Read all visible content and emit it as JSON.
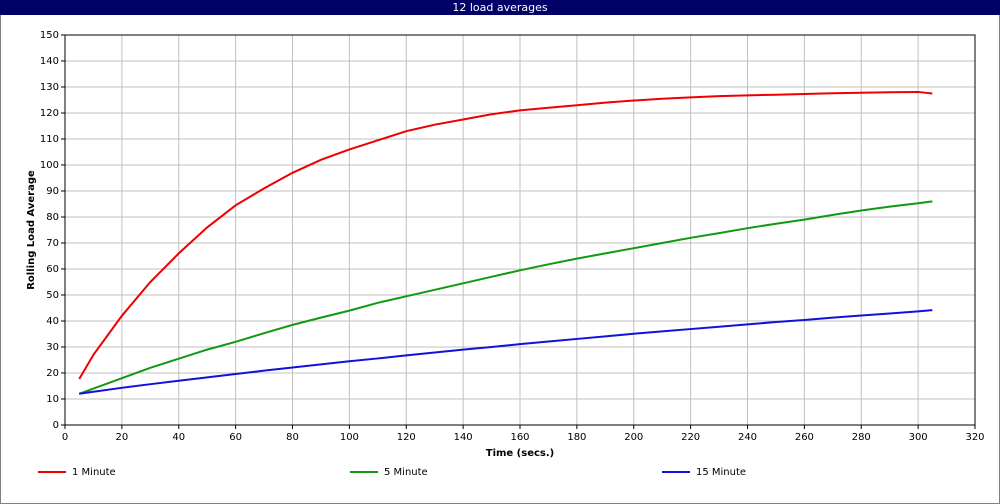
{
  "chart_data": {
    "type": "line",
    "title": "12 load averages",
    "xlabel": "Time (secs.)",
    "ylabel": "Rolling Load Average",
    "x": [
      5,
      10,
      20,
      30,
      40,
      50,
      60,
      70,
      80,
      90,
      100,
      110,
      120,
      130,
      140,
      150,
      160,
      170,
      180,
      190,
      200,
      210,
      220,
      230,
      240,
      250,
      260,
      270,
      280,
      290,
      300,
      305
    ],
    "series": [
      {
        "name": "1 Minute",
        "color": "#ee0000",
        "values": [
          17.7,
          27,
          42,
          55,
          66,
          76,
          84.5,
          91,
          97,
          102,
          106,
          109.5,
          113,
          115.5,
          117.5,
          119.5,
          121,
          122,
          123,
          124,
          124.8,
          125.5,
          126,
          126.5,
          126.8,
          127,
          127.3,
          127.6,
          127.8,
          128,
          128.1,
          127.5
        ]
      },
      {
        "name": "5 Minute",
        "color": "#119911",
        "values": [
          12,
          14,
          18,
          22,
          25.5,
          29,
          32,
          35.3,
          38.5,
          41.3,
          44,
          47,
          49.5,
          52,
          54.5,
          57,
          59.5,
          61.8,
          64,
          66,
          68,
          70,
          72,
          73.8,
          75.7,
          77.4,
          79,
          80.8,
          82.5,
          84,
          85.3,
          86
        ]
      },
      {
        "name": "15 Minute",
        "color": "#1111dd",
        "values": [
          12,
          12.8,
          14.3,
          15.7,
          17,
          18.3,
          19.6,
          20.9,
          22.1,
          23.3,
          24.5,
          25.6,
          26.8,
          27.9,
          29,
          30,
          31.1,
          32.1,
          33.1,
          34.1,
          35.1,
          36,
          36.9,
          37.8,
          38.7,
          39.6,
          40.4,
          41.3,
          42.1,
          42.9,
          43.7,
          44.2
        ]
      }
    ],
    "xlim": [
      0,
      320
    ],
    "ylim": [
      0,
      150
    ],
    "xticks": [
      0,
      20,
      40,
      60,
      80,
      100,
      120,
      140,
      160,
      180,
      200,
      220,
      240,
      260,
      280,
      300,
      320
    ],
    "yticks": [
      0,
      10,
      20,
      30,
      40,
      50,
      60,
      70,
      80,
      90,
      100,
      110,
      120,
      130,
      140,
      150
    ],
    "grid": true,
    "legend": "bottom"
  }
}
